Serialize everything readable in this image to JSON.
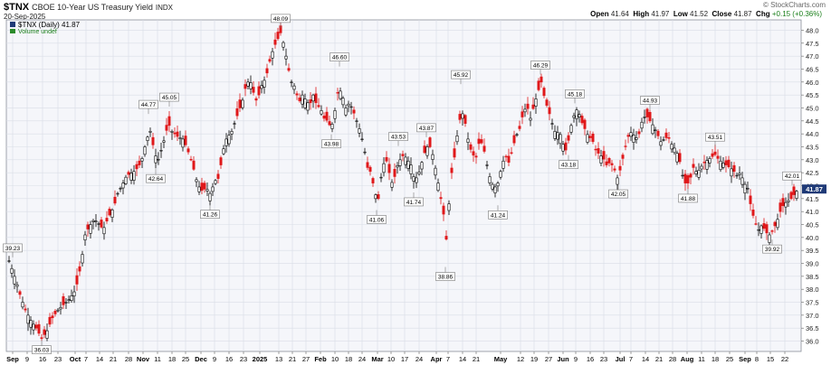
{
  "header": {
    "symbol": "$TNX",
    "description": "CBOE 10-Year US Treasury Yield",
    "exchange": "INDX",
    "date": "20-Sep-2025",
    "copyright": "© StockCharts.com",
    "ohlc": {
      "open_label": "Open",
      "open": "41.64",
      "high_label": "High",
      "high": "41.97",
      "low_label": "Low",
      "low": "41.52",
      "close_label": "Close",
      "close": "41.87",
      "chg_label": "Chg",
      "chg": "+0.15 (+0.36%)"
    }
  },
  "legend": {
    "series_label": "$TNX (Daily) 41.87",
    "volume_label": "Volume undef"
  },
  "colors": {
    "up": "#000000",
    "down": "#e0181b",
    "grid": "#d9dde6",
    "price_box_bg": "#1f3a77",
    "price_box_text": "#ffffff",
    "plot_bg": "#f5f6fa"
  },
  "chart_data": {
    "type": "candlestick",
    "ylim": [
      35.6,
      48.4
    ],
    "y_ticks": [
      "36.0",
      "36.5",
      "37.0",
      "37.5",
      "38.0",
      "38.5",
      "39.0",
      "39.5",
      "40.0",
      "40.5",
      "41.0",
      "41.5",
      "42.0",
      "42.5",
      "43.0",
      "43.5",
      "44.0",
      "44.5",
      "45.0",
      "45.5",
      "46.0",
      "46.5",
      "47.0",
      "47.5",
      "48.0"
    ],
    "y_tick_values": [
      36.0,
      36.5,
      37.0,
      37.5,
      38.0,
      38.5,
      39.0,
      39.5,
      40.0,
      40.5,
      41.0,
      41.5,
      42.0,
      42.5,
      43.0,
      43.5,
      44.0,
      44.5,
      45.0,
      45.5,
      46.0,
      46.5,
      47.0,
      47.5,
      48.0
    ],
    "x_axis": [
      {
        "label": "Sep",
        "bold": true,
        "x": 14
      },
      {
        "label": "9",
        "bold": false,
        "x": 30
      },
      {
        "label": "16",
        "bold": false,
        "x": 47
      },
      {
        "label": "23",
        "bold": false,
        "x": 64
      },
      {
        "label": "Oct",
        "bold": true,
        "x": 83
      },
      {
        "label": "7",
        "bold": false,
        "x": 95
      },
      {
        "label": "14",
        "bold": false,
        "x": 110
      },
      {
        "label": "21",
        "bold": false,
        "x": 125
      },
      {
        "label": "28",
        "bold": false,
        "x": 142
      },
      {
        "label": "Nov",
        "bold": true,
        "x": 158
      },
      {
        "label": "11",
        "bold": false,
        "x": 174
      },
      {
        "label": "18",
        "bold": false,
        "x": 190
      },
      {
        "label": "25",
        "bold": false,
        "x": 205
      },
      {
        "label": "Dec",
        "bold": true,
        "x": 222
      },
      {
        "label": "9",
        "bold": false,
        "x": 237
      },
      {
        "label": "16",
        "bold": false,
        "x": 253
      },
      {
        "label": "23",
        "bold": false,
        "x": 269
      },
      {
        "label": "2025",
        "bold": true,
        "x": 287
      },
      {
        "label": "13",
        "bold": false,
        "x": 308
      },
      {
        "label": "21",
        "bold": false,
        "x": 323
      },
      {
        "label": "27",
        "bold": false,
        "x": 338
      },
      {
        "label": "Feb",
        "bold": true,
        "x": 354
      },
      {
        "label": "10",
        "bold": false,
        "x": 370
      },
      {
        "label": "18",
        "bold": false,
        "x": 385
      },
      {
        "label": "24",
        "bold": false,
        "x": 400
      },
      {
        "label": "Mar",
        "bold": true,
        "x": 417
      },
      {
        "label": "10",
        "bold": false,
        "x": 432
      },
      {
        "label": "17",
        "bold": false,
        "x": 447
      },
      {
        "label": "24",
        "bold": false,
        "x": 463
      },
      {
        "label": "Apr",
        "bold": true,
        "x": 482
      },
      {
        "label": "7",
        "bold": false,
        "x": 495
      },
      {
        "label": "14",
        "bold": false,
        "x": 511
      },
      {
        "label": "21",
        "bold": false,
        "x": 526
      },
      {
        "label": "May",
        "bold": true,
        "x": 553
      },
      {
        "label": "12",
        "bold": false,
        "x": 575
      },
      {
        "label": "19",
        "bold": false,
        "x": 590
      },
      {
        "label": "27",
        "bold": false,
        "x": 606
      },
      {
        "label": "Jun",
        "bold": true,
        "x": 622
      },
      {
        "label": "9",
        "bold": false,
        "x": 636
      },
      {
        "label": "16",
        "bold": false,
        "x": 652
      },
      {
        "label": "23",
        "bold": false,
        "x": 667
      },
      {
        "label": "Jul",
        "bold": true,
        "x": 685
      },
      {
        "label": "7",
        "bold": false,
        "x": 697
      },
      {
        "label": "14",
        "bold": false,
        "x": 713
      },
      {
        "label": "21",
        "bold": false,
        "x": 728
      },
      {
        "label": "28",
        "bold": false,
        "x": 743
      },
      {
        "label": "Aug",
        "bold": true,
        "x": 759
      },
      {
        "label": "11",
        "bold": false,
        "x": 775
      },
      {
        "label": "18",
        "bold": false,
        "x": 790
      },
      {
        "label": "25",
        "bold": false,
        "x": 806
      },
      {
        "label": "Sep",
        "bold": true,
        "x": 823
      },
      {
        "label": "8",
        "bold": false,
        "x": 836
      },
      {
        "label": "15",
        "bold": false,
        "x": 851
      },
      {
        "label": "22",
        "bold": false,
        "x": 867
      }
    ],
    "annotations": [
      {
        "text": "39.23",
        "x": 14,
        "value": 39.23,
        "pos": "above"
      },
      {
        "text": "36.03",
        "x": 46,
        "value": 36.03,
        "pos": "below"
      },
      {
        "text": "44.77",
        "x": 164,
        "value": 44.77,
        "pos": "above"
      },
      {
        "text": "42.64",
        "x": 172,
        "value": 42.64,
        "pos": "below"
      },
      {
        "text": "45.05",
        "x": 187,
        "value": 45.05,
        "pos": "above"
      },
      {
        "text": "41.26",
        "x": 232,
        "value": 41.26,
        "pos": "below"
      },
      {
        "text": "48.09",
        "x": 310,
        "value": 48.09,
        "pos": "above"
      },
      {
        "text": "46.60",
        "x": 375,
        "value": 46.6,
        "pos": "above"
      },
      {
        "text": "43.98",
        "x": 366,
        "value": 43.98,
        "pos": "below"
      },
      {
        "text": "41.06",
        "x": 416,
        "value": 41.06,
        "pos": "below"
      },
      {
        "text": "43.53",
        "x": 440,
        "value": 43.53,
        "pos": "above"
      },
      {
        "text": "43.87",
        "x": 471,
        "value": 43.87,
        "pos": "above"
      },
      {
        "text": "41.74",
        "x": 457,
        "value": 41.74,
        "pos": "below"
      },
      {
        "text": "38.86",
        "x": 492,
        "value": 38.86,
        "pos": "below"
      },
      {
        "text": "45.92",
        "x": 509,
        "value": 45.92,
        "pos": "above"
      },
      {
        "text": "41.24",
        "x": 550,
        "value": 41.24,
        "pos": "below"
      },
      {
        "text": "46.29",
        "x": 597,
        "value": 46.29,
        "pos": "above"
      },
      {
        "text": "45.18",
        "x": 635,
        "value": 45.18,
        "pos": "above"
      },
      {
        "text": "43.18",
        "x": 628,
        "value": 43.18,
        "pos": "below"
      },
      {
        "text": "42.05",
        "x": 683,
        "value": 42.05,
        "pos": "below"
      },
      {
        "text": "44.93",
        "x": 718,
        "value": 44.93,
        "pos": "above"
      },
      {
        "text": "41.88",
        "x": 760,
        "value": 41.88,
        "pos": "below"
      },
      {
        "text": "43.51",
        "x": 790,
        "value": 43.51,
        "pos": "above"
      },
      {
        "text": "39.92",
        "x": 853,
        "value": 39.92,
        "pos": "below"
      },
      {
        "text": "42.01",
        "x": 875,
        "value": 42.01,
        "pos": "above"
      }
    ],
    "last_value": "41.87",
    "last_value_num": 41.87,
    "path_points": [
      [
        10,
        39.1
      ],
      [
        14,
        38.7
      ],
      [
        18,
        38.3
      ],
      [
        22,
        37.8
      ],
      [
        28,
        37.2
      ],
      [
        34,
        36.8
      ],
      [
        40,
        36.5
      ],
      [
        46,
        36.1
      ],
      [
        52,
        36.4
      ],
      [
        58,
        36.9
      ],
      [
        64,
        37.2
      ],
      [
        70,
        37.4
      ],
      [
        76,
        37.6
      ],
      [
        82,
        37.9
      ],
      [
        86,
        38.3
      ],
      [
        90,
        39.1
      ],
      [
        94,
        40.1
      ],
      [
        98,
        40.4
      ],
      [
        104,
        40.7
      ],
      [
        110,
        40.5
      ],
      [
        114,
        40.3
      ],
      [
        120,
        40.8
      ],
      [
        126,
        41.2
      ],
      [
        130,
        41.7
      ],
      [
        136,
        42.1
      ],
      [
        140,
        42.4
      ],
      [
        146,
        42.5
      ],
      [
        150,
        42.6
      ],
      [
        156,
        42.9
      ],
      [
        162,
        43.8
      ],
      [
        166,
        44.1
      ],
      [
        170,
        43.4
      ],
      [
        174,
        42.9
      ],
      [
        180,
        43.6
      ],
      [
        186,
        44.4
      ],
      [
        190,
        44.1
      ],
      [
        196,
        43.9
      ],
      [
        202,
        43.8
      ],
      [
        206,
        43.5
      ],
      [
        212,
        42.9
      ],
      [
        218,
        42.1
      ],
      [
        222,
        41.8
      ],
      [
        228,
        41.9
      ],
      [
        232,
        41.7
      ],
      [
        238,
        42.2
      ],
      [
        242,
        42.3
      ],
      [
        246,
        43.3
      ],
      [
        250,
        43.8
      ],
      [
        256,
        44.1
      ],
      [
        262,
        44.7
      ],
      [
        268,
        45.3
      ],
      [
        272,
        45.9
      ],
      [
        276,
        46.1
      ],
      [
        280,
        45.6
      ],
      [
        284,
        45.2
      ],
      [
        288,
        45.8
      ],
      [
        294,
        46.2
      ],
      [
        298,
        46.8
      ],
      [
        302,
        47.3
      ],
      [
        306,
        47.6
      ],
      [
        310,
        47.9
      ],
      [
        314,
        47.4
      ],
      [
        318,
        46.6
      ],
      [
        322,
        46.0
      ],
      [
        326,
        45.8
      ],
      [
        330,
        45.2
      ],
      [
        334,
        45.5
      ],
      [
        338,
        45.3
      ],
      [
        342,
        45.1
      ],
      [
        346,
        45.5
      ],
      [
        350,
        45.1
      ],
      [
        354,
        45.0
      ],
      [
        358,
        44.6
      ],
      [
        362,
        44.5
      ],
      [
        366,
        44.2
      ],
      [
        370,
        44.9
      ],
      [
        374,
        45.8
      ],
      [
        378,
        45.5
      ],
      [
        382,
        45.0
      ],
      [
        386,
        45.2
      ],
      [
        390,
        44.9
      ],
      [
        394,
        44.5
      ],
      [
        398,
        44.1
      ],
      [
        402,
        43.5
      ],
      [
        406,
        42.7
      ],
      [
        410,
        42.5
      ],
      [
        414,
        41.7
      ],
      [
        418,
        41.5
      ],
      [
        422,
        42.6
      ],
      [
        426,
        43.1
      ],
      [
        430,
        42.5
      ],
      [
        434,
        42.0
      ],
      [
        438,
        42.7
      ],
      [
        442,
        43.0
      ],
      [
        446,
        43.2
      ],
      [
        450,
        43.0
      ],
      [
        454,
        42.8
      ],
      [
        458,
        42.2
      ],
      [
        462,
        42.4
      ],
      [
        466,
        42.9
      ],
      [
        470,
        43.4
      ],
      [
        474,
        43.6
      ],
      [
        478,
        43.2
      ],
      [
        482,
        42.5
      ],
      [
        486,
        41.7
      ],
      [
        490,
        40.9
      ],
      [
        492,
        39.5
      ],
      [
        495,
        40.8
      ],
      [
        498,
        42.3
      ],
      [
        502,
        43.1
      ],
      [
        506,
        44.2
      ],
      [
        510,
        44.9
      ],
      [
        514,
        44.4
      ],
      [
        518,
        43.6
      ],
      [
        522,
        43.2
      ],
      [
        526,
        43.1
      ],
      [
        530,
        43.8
      ],
      [
        534,
        43.5
      ],
      [
        538,
        42.8
      ],
      [
        542,
        42.2
      ],
      [
        546,
        41.9
      ],
      [
        550,
        42.1
      ],
      [
        554,
        42.7
      ],
      [
        558,
        43.2
      ],
      [
        562,
        42.9
      ],
      [
        566,
        43.4
      ],
      [
        570,
        43.9
      ],
      [
        574,
        44.2
      ],
      [
        578,
        44.8
      ],
      [
        582,
        45.1
      ],
      [
        586,
        44.6
      ],
      [
        590,
        45.1
      ],
      [
        594,
        45.6
      ],
      [
        598,
        46.0
      ],
      [
        602,
        45.3
      ],
      [
        606,
        44.9
      ],
      [
        610,
        44.4
      ],
      [
        614,
        44.0
      ],
      [
        618,
        44.1
      ],
      [
        622,
        43.6
      ],
      [
        626,
        43.3
      ],
      [
        630,
        44.2
      ],
      [
        634,
        44.7
      ],
      [
        638,
        45.0
      ],
      [
        642,
        44.5
      ],
      [
        646,
        44.2
      ],
      [
        650,
        43.9
      ],
      [
        654,
        43.8
      ],
      [
        658,
        43.4
      ],
      [
        662,
        43.2
      ],
      [
        666,
        43.1
      ],
      [
        670,
        42.8
      ],
      [
        674,
        42.9
      ],
      [
        678,
        42.7
      ],
      [
        682,
        42.3
      ],
      [
        686,
        42.7
      ],
      [
        690,
        43.4
      ],
      [
        694,
        43.9
      ],
      [
        698,
        44.1
      ],
      [
        702,
        43.8
      ],
      [
        706,
        44.0
      ],
      [
        710,
        44.6
      ],
      [
        714,
        44.7
      ],
      [
        718,
        44.5
      ],
      [
        722,
        44.3
      ],
      [
        726,
        44.0
      ],
      [
        730,
        43.7
      ],
      [
        734,
        43.8
      ],
      [
        738,
        43.9
      ],
      [
        742,
        43.6
      ],
      [
        746,
        43.4
      ],
      [
        750,
        43.1
      ],
      [
        754,
        42.4
      ],
      [
        758,
        42.0
      ],
      [
        762,
        42.2
      ],
      [
        766,
        42.7
      ],
      [
        770,
        42.5
      ],
      [
        774,
        42.7
      ],
      [
        778,
        42.9
      ],
      [
        782,
        43.0
      ],
      [
        786,
        43.1
      ],
      [
        790,
        43.2
      ],
      [
        794,
        43.0
      ],
      [
        798,
        42.9
      ],
      [
        802,
        42.8
      ],
      [
        806,
        42.7
      ],
      [
        810,
        42.6
      ],
      [
        814,
        42.4
      ],
      [
        818,
        42.5
      ],
      [
        822,
        42.1
      ],
      [
        826,
        41.9
      ],
      [
        830,
        41.1
      ],
      [
        834,
        40.6
      ],
      [
        838,
        40.3
      ],
      [
        842,
        40.5
      ],
      [
        846,
        40.2
      ],
      [
        850,
        40.1
      ],
      [
        854,
        40.3
      ],
      [
        858,
        40.6
      ],
      [
        862,
        41.0
      ],
      [
        866,
        41.3
      ],
      [
        870,
        41.4
      ],
      [
        874,
        41.5
      ],
      [
        878,
        41.7
      ],
      [
        882,
        41.87
      ]
    ]
  }
}
